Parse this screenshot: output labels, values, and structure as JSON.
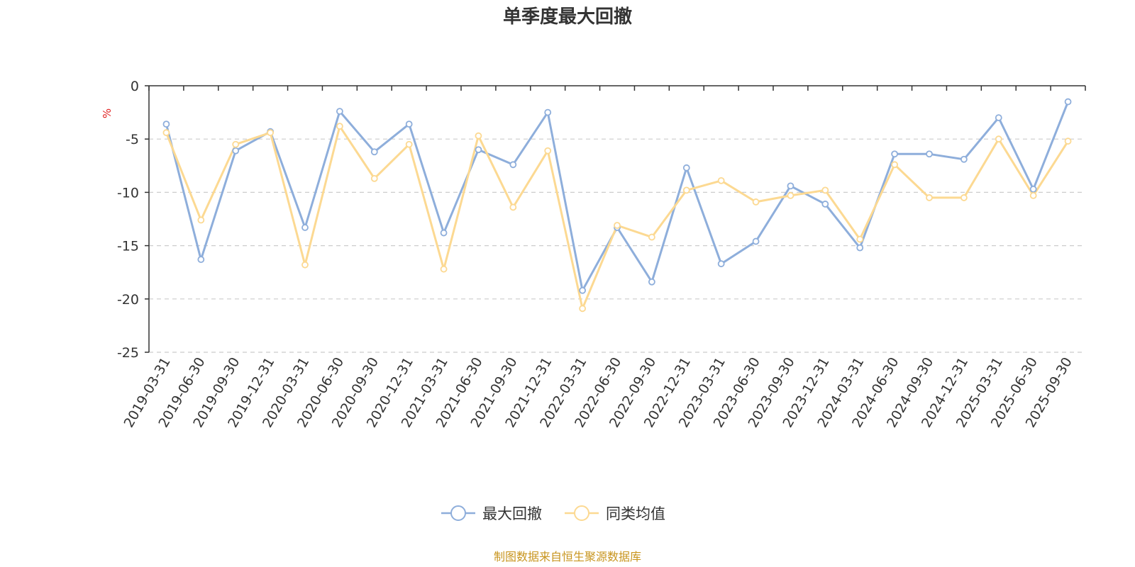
{
  "chart_data": {
    "type": "line",
    "title": "单季度最大回撤",
    "ylabel": "%",
    "ylim": [
      -25,
      0
    ],
    "yticks": [
      0,
      -5,
      -10,
      -15,
      -20,
      -25
    ],
    "ytick_labels": [
      "0",
      "-5",
      "-10",
      "-15",
      "-20",
      "-25"
    ],
    "categories": [
      "2019-03-31",
      "2019-06-30",
      "2019-09-30",
      "2019-12-31",
      "2020-03-31",
      "2020-06-30",
      "2020-09-30",
      "2020-12-31",
      "2021-03-31",
      "2021-06-30",
      "2021-09-30",
      "2021-12-31",
      "2022-03-31",
      "2022-06-30",
      "2022-09-30",
      "2022-12-31",
      "2023-03-31",
      "2023-06-30",
      "2023-09-30",
      "2023-12-31",
      "2024-03-31",
      "2024-06-30",
      "2024-09-30",
      "2024-12-31",
      "2025-03-31",
      "2025-06-30",
      "2025-09-30"
    ],
    "series": [
      {
        "name": "最大回撤",
        "color": "#8eaedb",
        "values": [
          -3.6,
          -16.3,
          -6.1,
          -4.3,
          -13.3,
          -2.4,
          -6.2,
          -3.6,
          -13.8,
          -6.0,
          -7.4,
          -2.5,
          -19.2,
          -13.3,
          -18.4,
          -7.7,
          -16.7,
          -14.6,
          -9.4,
          -11.1,
          -15.2,
          -6.4,
          -6.4,
          -6.9,
          -3.0,
          -9.7,
          -1.5
        ]
      },
      {
        "name": "同类均值",
        "color": "#fcd992",
        "values": [
          -4.4,
          -12.6,
          -5.5,
          -4.4,
          -16.8,
          -3.8,
          -8.7,
          -5.5,
          -17.2,
          -4.7,
          -11.4,
          -6.1,
          -20.9,
          -13.1,
          -14.2,
          -9.8,
          -8.9,
          -10.9,
          -10.3,
          -9.8,
          -14.4,
          -7.4,
          -10.5,
          -10.5,
          -5.0,
          -10.3,
          -5.2
        ]
      }
    ],
    "gridlines": "dashed",
    "legend_position": "bottom-center",
    "source": "制图数据来自恒生聚源数据库"
  }
}
